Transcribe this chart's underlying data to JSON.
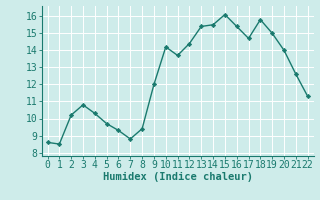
{
  "x": [
    0,
    1,
    2,
    3,
    4,
    5,
    6,
    7,
    8,
    9,
    10,
    11,
    12,
    13,
    14,
    15,
    16,
    17,
    18,
    19,
    20,
    21,
    22
  ],
  "y": [
    8.6,
    8.5,
    10.2,
    10.8,
    10.3,
    9.7,
    9.3,
    8.8,
    9.4,
    12.0,
    14.2,
    13.7,
    14.4,
    15.4,
    15.5,
    16.1,
    15.4,
    14.7,
    15.8,
    15.0,
    14.0,
    12.6,
    11.3
  ],
  "line_color": "#1a7a6e",
  "marker": "D",
  "marker_size": 2.2,
  "line_width": 1.0,
  "xlabel": "Humidex (Indice chaleur)",
  "xlabel_fontsize": 7.5,
  "xlabel_color": "#1a7a6e",
  "ylim": [
    7.8,
    16.6
  ],
  "yticks": [
    8,
    9,
    10,
    11,
    12,
    13,
    14,
    15,
    16
  ],
  "xticks": [
    0,
    1,
    2,
    3,
    4,
    5,
    6,
    7,
    8,
    9,
    10,
    11,
    12,
    13,
    14,
    15,
    16,
    17,
    18,
    19,
    20,
    21,
    22
  ],
  "background_color": "#ceecea",
  "grid_color": "#ffffff",
  "tick_color": "#1a7a6e",
  "tick_fontsize": 7,
  "spine_color": "#1a7a6e",
  "spine_left_color": "#5a9a8a",
  "spine_bottom_color": "#5a9a8a"
}
